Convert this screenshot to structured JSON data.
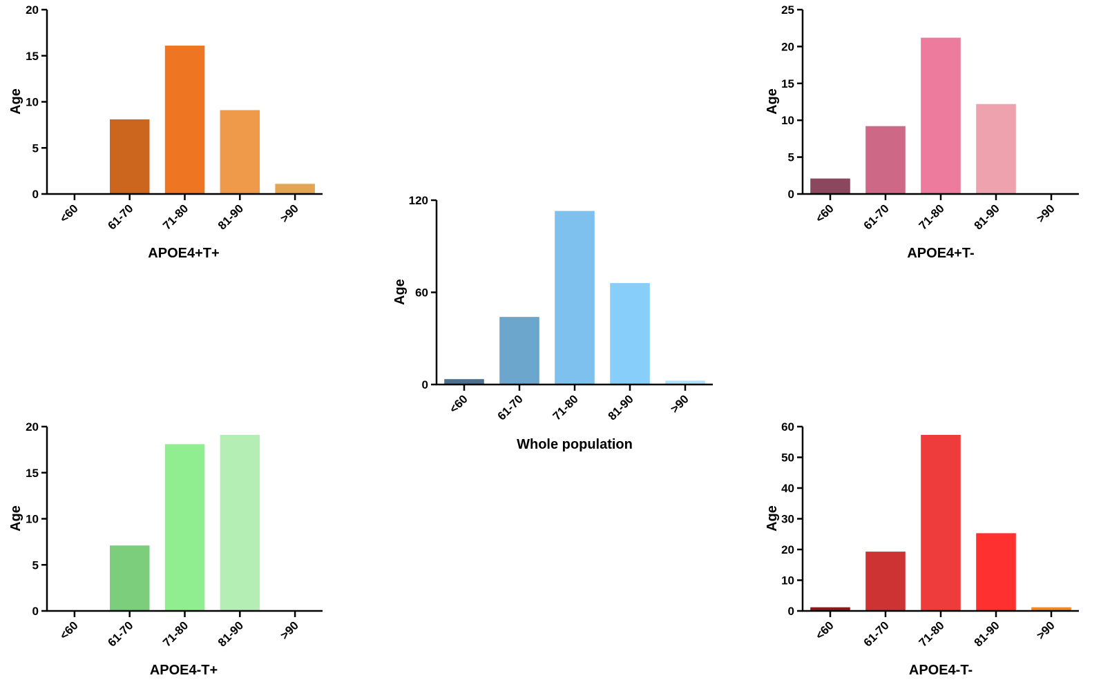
{
  "chart_data": [
    {
      "id": "apoe4-tplus",
      "type": "bar",
      "categories": [
        "<60",
        "61-70",
        "71-80",
        "81-90",
        ">90"
      ],
      "values": [
        0,
        8.1,
        16.1,
        9.1,
        1.1
      ],
      "colors": [
        "#cc651e",
        "#cc651e",
        "#ee7521",
        "#ef9a4b",
        "#e2a552"
      ],
      "xlabel": "APOE4+T+",
      "ylabel": "Age",
      "ylim": [
        0,
        20
      ],
      "yticks": [
        0,
        5,
        10,
        15,
        20
      ]
    },
    {
      "id": "apoe4-tminus",
      "type": "bar",
      "categories": [
        "<60",
        "61-70",
        "71-80",
        "81-90",
        ">90"
      ],
      "values": [
        2.1,
        9.2,
        21.2,
        12.2,
        0
      ],
      "colors": [
        "#8b475d",
        "#cd6887",
        "#ec7b9d",
        "#eea2ad",
        "#eea2ad"
      ],
      "xlabel": "APOE4+T-",
      "ylabel": "Age",
      "ylim": [
        0,
        25
      ],
      "yticks": [
        0,
        5,
        10,
        15,
        20,
        25
      ]
    },
    {
      "id": "whole-population",
      "type": "bar",
      "categories": [
        "<60",
        "61-70",
        "71-80",
        "81-90",
        ">90"
      ],
      "values": [
        3.5,
        44,
        113,
        66,
        2.5
      ],
      "colors": [
        "#4a6f8f",
        "#6ca6cd",
        "#7ec0ee",
        "#87cefa",
        "#b0e2ff"
      ],
      "xlabel": "Whole population",
      "ylabel": "Age",
      "ylim": [
        0,
        120
      ],
      "yticks": [
        0,
        60,
        120
      ]
    },
    {
      "id": "apoe4neg-tplus",
      "type": "bar",
      "categories": [
        "<60",
        "61-70",
        "71-80",
        "81-90",
        ">90"
      ],
      "values": [
        0,
        7.1,
        18.1,
        19.1,
        0
      ],
      "colors": [
        "#7ccd7c",
        "#7ccd7c",
        "#90ee90",
        "#b4eeb4",
        "#b4eeb4"
      ],
      "xlabel": "APOE4-T+",
      "ylabel": "Age",
      "ylim": [
        0,
        20
      ],
      "yticks": [
        0,
        5,
        10,
        15,
        20
      ]
    },
    {
      "id": "apoe4neg-tminus",
      "type": "bar",
      "categories": [
        "<60",
        "61-70",
        "71-80",
        "81-90",
        ">90"
      ],
      "values": [
        1.2,
        19.3,
        57.3,
        25.3,
        1.2
      ],
      "colors": [
        "#8b1a1a",
        "#cd3333",
        "#ee3b3b",
        "#ff3030",
        "#f08a24"
      ],
      "xlabel": "APOE4-T-",
      "ylabel": "Age",
      "ylim": [
        0,
        60
      ],
      "yticks": [
        0,
        10,
        20,
        30,
        40,
        50,
        60
      ]
    }
  ]
}
